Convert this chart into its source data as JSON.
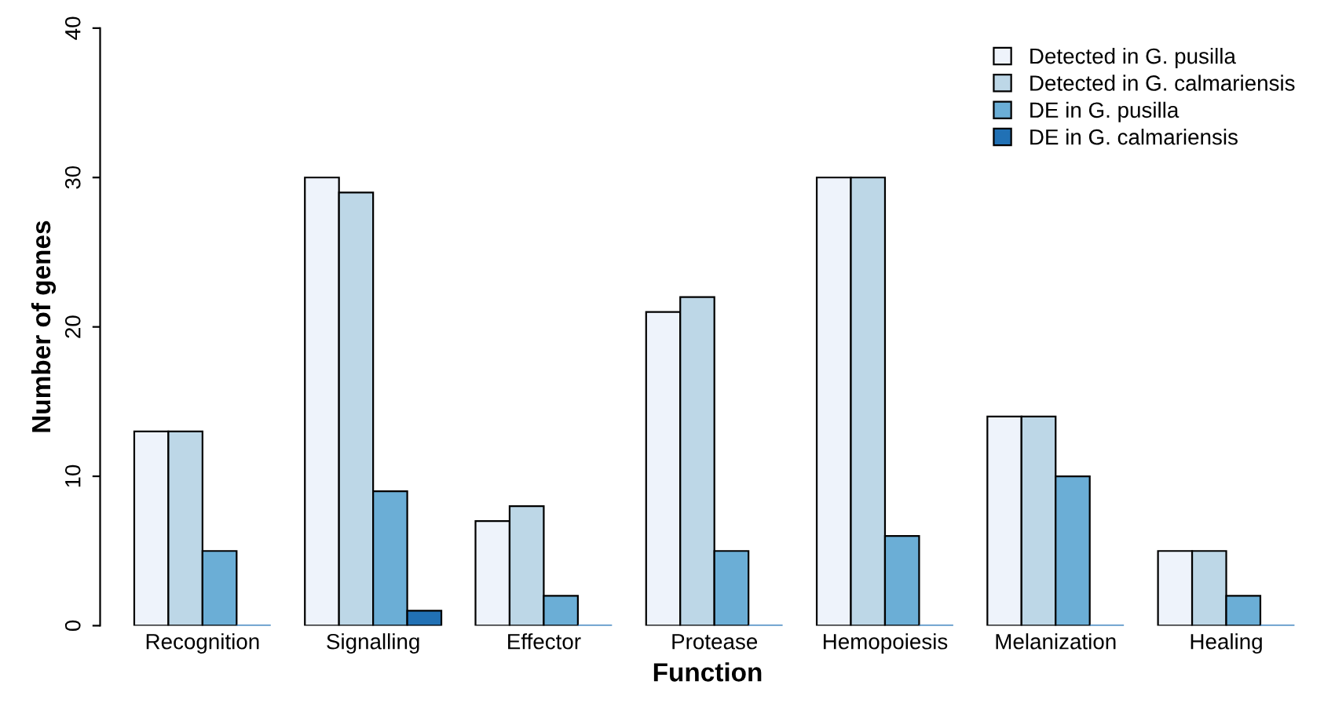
{
  "chart_data": {
    "type": "bar",
    "xlabel": "Function",
    "ylabel": "Number of genes",
    "categories": [
      "Recognition",
      "Signalling",
      "Effector",
      "Protease",
      "Hemopoiesis",
      "Melanization",
      "Healing"
    ],
    "series": [
      {
        "name": "Detected in G. pusilla",
        "color": "#eef3fb",
        "values": [
          13,
          30,
          7,
          21,
          30,
          14,
          5
        ]
      },
      {
        "name": "Detected in G. calmariensis",
        "color": "#bdd7e7",
        "values": [
          13,
          29,
          8,
          22,
          30,
          14,
          5
        ]
      },
      {
        "name": "DE in G. pusilla",
        "color": "#6baed6",
        "values": [
          5,
          9,
          2,
          5,
          6,
          10,
          2
        ]
      },
      {
        "name": "DE in G. calmariensis",
        "color": "#2171b5",
        "values": [
          0,
          1,
          0,
          0,
          0,
          0,
          0
        ]
      }
    ],
    "ylim": [
      0,
      40
    ],
    "yticks": [
      0,
      10,
      20,
      30,
      40
    ],
    "grid": false,
    "legend": "top right"
  }
}
